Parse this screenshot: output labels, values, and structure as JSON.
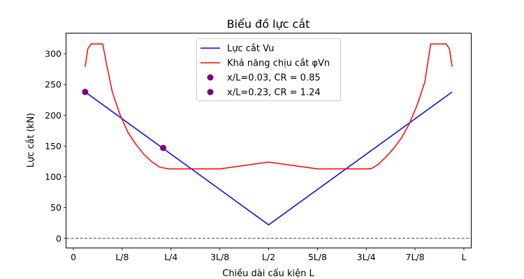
{
  "chart_data": {
    "type": "line",
    "title": "Biểu đồ lực cắt",
    "xlabel": "Chiều dài cấu kiện L",
    "ylabel": "Lực cắt (kN)",
    "xlim": [
      -0.018,
      1.018
    ],
    "ylim": [
      -15,
      333
    ],
    "x_ticks": [
      {
        "value": 0,
        "label": "0"
      },
      {
        "value": 0.125,
        "label": "L/8"
      },
      {
        "value": 0.25,
        "label": "L/4"
      },
      {
        "value": 0.375,
        "label": "3L/8"
      },
      {
        "value": 0.5,
        "label": "L/2"
      },
      {
        "value": 0.625,
        "label": "5L/8"
      },
      {
        "value": 0.75,
        "label": "3L/4"
      },
      {
        "value": 0.875,
        "label": "7L/8"
      },
      {
        "value": 1,
        "label": "L"
      }
    ],
    "y_ticks": [
      0,
      50,
      100,
      150,
      200,
      250,
      300
    ],
    "reference_line": {
      "y": 0,
      "style": "dashed",
      "color": "#000000"
    },
    "series": [
      {
        "name": "Lực cắt Vu",
        "color": "#0000ff",
        "x": [
          0.03,
          0.5,
          0.97
        ],
        "y": [
          238,
          22,
          238
        ]
      },
      {
        "name": "Khả năng chịu cắt φVn",
        "color": "#ff0000",
        "x": [
          0.03,
          0.037,
          0.045,
          0.075,
          0.085,
          0.1,
          0.12,
          0.14,
          0.16,
          0.18,
          0.2,
          0.22,
          0.235,
          0.245,
          0.25,
          0.375,
          0.5,
          0.625,
          0.75,
          0.755,
          0.765,
          0.78,
          0.8,
          0.82,
          0.84,
          0.86,
          0.88,
          0.9,
          0.915,
          0.925,
          0.955,
          0.963,
          0.97
        ],
        "y": [
          279,
          308,
          316,
          316,
          283,
          237,
          200,
          172,
          153,
          137,
          125,
          116,
          114,
          113,
          113,
          113,
          124,
          113,
          113,
          113,
          114,
          120,
          132,
          146,
          163,
          186,
          216,
          254,
          316,
          316,
          316,
          308,
          279
        ]
      }
    ],
    "points": [
      {
        "name": "x/L=0.03, CR = 0.85",
        "x": 0.03,
        "y": 238,
        "color": "#800080"
      },
      {
        "name": "x/L=0.23, CR = 1.24",
        "x": 0.23,
        "y": 147,
        "color": "#800080"
      }
    ],
    "legend_position": "top-center"
  }
}
